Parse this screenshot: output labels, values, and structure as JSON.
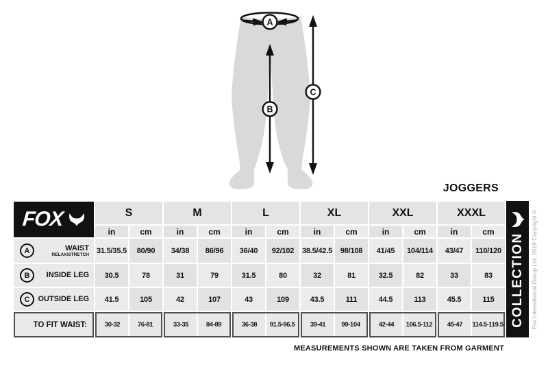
{
  "page": {
    "title": "JOGGERS",
    "brand_wordmark": "FOX",
    "collection_label": "COLLECTION",
    "copyright": "Fox International Group Ltd. 2019 Copyright ©",
    "footnote": "MEASUREMENTS SHOWN ARE TAKEN FROM GARMENT"
  },
  "icons": {
    "brand": "fox-head-icon"
  },
  "diagram": {
    "markers": {
      "waist": "A",
      "inside_leg": "B",
      "outside_leg": "C"
    }
  },
  "colors": {
    "black": "#111111",
    "cell_dark": "#e2e2e2",
    "cell_light": "#ebebeb",
    "label_cell": "#e9e9e9",
    "silhouette": "#d9d9d9",
    "fit_border": "#4f4f4f",
    "copyright_gray": "#a6a6a6"
  },
  "chart_data": {
    "type": "table",
    "title": "JOGGERS",
    "column_groups": [
      "S",
      "M",
      "L",
      "XL",
      "XXL",
      "XXXL"
    ],
    "units_per_group": [
      "in",
      "cm"
    ],
    "rows": [
      {
        "marker": "A",
        "label": "WAIST",
        "sublabel": "RELAX/STRETCH",
        "values_in": [
          "31.5/35.5",
          "34/38",
          "36/40",
          "38.5/42.5",
          "41/45",
          "43/47"
        ],
        "values_cm": [
          "80/90",
          "86/96",
          "92/102",
          "98/108",
          "104/114",
          "110/120"
        ]
      },
      {
        "marker": "B",
        "label": "INSIDE LEG",
        "values_in": [
          "30.5",
          "31",
          "31.5",
          "32",
          "32.5",
          "33"
        ],
        "values_cm": [
          "78",
          "79",
          "80",
          "81",
          "82",
          "83"
        ]
      },
      {
        "marker": "C",
        "label": "OUTSIDE LEG",
        "values_in": [
          "41.5",
          "42",
          "43",
          "43.5",
          "44.5",
          "45.5"
        ],
        "values_cm": [
          "105",
          "107",
          "109",
          "111",
          "113",
          "115"
        ]
      }
    ],
    "to_fit_waist": {
      "label": "TO FIT WAIST:",
      "in": [
        "30-32",
        "33-35",
        "36-38",
        "39-41",
        "42-44",
        "45-47"
      ],
      "cm": [
        "76-81",
        "84-89",
        "91.5-96.5",
        "99-104",
        "106.5-112",
        "114.5-119.5"
      ]
    },
    "note": "MEASUREMENTS SHOWN ARE TAKEN FROM GARMENT"
  }
}
